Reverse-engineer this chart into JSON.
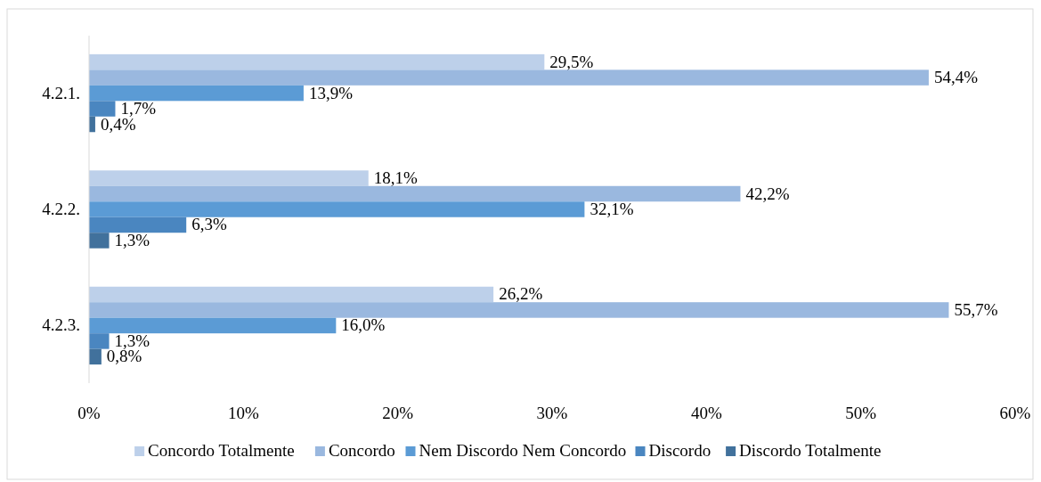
{
  "chart_data": {
    "type": "bar",
    "orientation": "horizontal",
    "categories": [
      "4.2.1.",
      "4.2.2.",
      "4.2.3."
    ],
    "series": [
      {
        "name": "Concordo Totalmente",
        "color": "#bdd0ea",
        "values": [
          29.5,
          18.1,
          26.2
        ],
        "value_labels": [
          "29,5%",
          "18,1%",
          "26,2%"
        ]
      },
      {
        "name": "Concordo",
        "color": "#9ab8df",
        "values": [
          54.4,
          42.2,
          55.7
        ],
        "value_labels": [
          "54,4%",
          "42,2%",
          "55,7%"
        ]
      },
      {
        "name": "Nem Discordo Nem Concordo",
        "color": "#5b9bd5",
        "values": [
          13.9,
          32.1,
          16.0
        ],
        "value_labels": [
          "13,9%",
          "32,1%",
          "16,0%"
        ]
      },
      {
        "name": "Discordo",
        "color": "#4a86c0",
        "values": [
          1.7,
          6.3,
          1.3
        ],
        "value_labels": [
          "1,7%",
          "6,3%",
          "1,3%"
        ]
      },
      {
        "name": "Discordo Totalmente",
        "color": "#41719c",
        "values": [
          0.4,
          1.3,
          0.8
        ],
        "value_labels": [
          "0,4%",
          "1,3%",
          "0,8%"
        ]
      }
    ],
    "xlim": [
      0,
      60
    ],
    "xticks": [
      {
        "value": 0,
        "label": "0%"
      },
      {
        "value": 10,
        "label": "10%"
      },
      {
        "value": 20,
        "label": "20%"
      },
      {
        "value": 30,
        "label": "30%"
      },
      {
        "value": 40,
        "label": "40%"
      },
      {
        "value": 50,
        "label": "50%"
      },
      {
        "value": 60,
        "label": "60%"
      }
    ],
    "legend": "bottom"
  }
}
